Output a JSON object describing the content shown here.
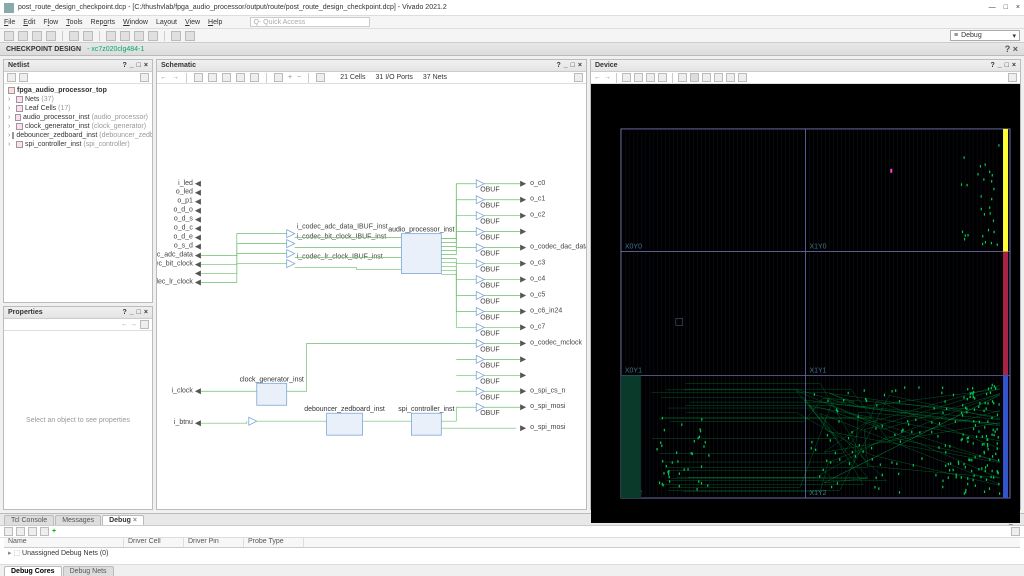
{
  "app": {
    "title": "post_route_design_checkpoint.dcp - [C:/thushvlab/fpga_audio_processor/output/route/post_route_design_checkpoint.dcp] - Vivado 2021.2",
    "menus": [
      "File",
      "Edit",
      "Flow",
      "Tools",
      "Reports",
      "Window",
      "Layout",
      "View",
      "Help"
    ],
    "search_placeholder": "Q- Quick Access",
    "layout_dropdown": "Debug"
  },
  "band": {
    "label": "CHECKPOINT DESIGN",
    "chip": "- xc7z020clg484-1"
  },
  "netlist": {
    "title": "Netlist",
    "root": "fpga_audio_processor_top",
    "items": [
      {
        "label": "Nets",
        "count": "(37)"
      },
      {
        "label": "Leaf Cells",
        "count": "(17)"
      },
      {
        "label": "audio_processor_inst",
        "type": "(audio_processor)"
      },
      {
        "label": "clock_generator_inst",
        "type": "(clock_generator)"
      },
      {
        "label": "debouncer_zedboard_inst",
        "type": "(debouncer_zedboard)"
      },
      {
        "label": "spi_controller_inst",
        "type": "(spi_controller)"
      }
    ]
  },
  "properties": {
    "title": "Properties",
    "empty": "Select an object to see properties"
  },
  "schematic": {
    "title": "Schematic",
    "stats": {
      "cells": "21 Cells",
      "ports": "31 I/O Ports",
      "nets": "37 Nets"
    },
    "left_ports": [
      "i_led",
      "o_led",
      "o_p1",
      "o_d_o",
      "o_d_s",
      "o_d_c",
      "o_d_e",
      "o_s_d",
      "i_codec_adc_data",
      "i_codec_bit_clock",
      "",
      "i_codec_lr_clock"
    ],
    "right_ports": [
      "o_c0",
      "o_c1",
      "o_c2",
      "",
      "o_codec_dac_data",
      "o_c3",
      "o_c4",
      "o_c5",
      "o_c6_in24",
      "o_c7",
      "o_codec_mclock",
      "",
      "",
      "o_spi_cs_n",
      "o_spi_mosi"
    ],
    "blocks": {
      "audio": "audio_processor_inst",
      "clock": "clock_generator_inst",
      "deb": "debouncer_zedboard_inst",
      "spi": "spi_controller_inst"
    },
    "small_labels": [
      "i_codec_adc_data_IBUF_inst",
      "i_codec_bit_clock_IBUF_inst",
      "",
      "i_codec_lr_clock_IBUF_inst"
    ],
    "obuf": "OBUF",
    "ibuf": "IBUF",
    "colors": {
      "net": "#6dbf6d",
      "block": "#7aa6d8",
      "port": "#555"
    }
  },
  "device": {
    "title": "Device",
    "tiles": [
      "X0Y2",
      "X1Y2",
      "X0Y1",
      "X1Y1",
      "X0Y0",
      "X1Y0"
    ],
    "colors": {
      "bg": "#000000",
      "grid": "#2a2a5a",
      "border": "#7878b8",
      "hl_yellow": "#ffff33",
      "hl_red": "#aa2244",
      "hl_blue": "#3355cc",
      "hl_green": "#00cc55",
      "hl_mag": "#ff44cc",
      "text": "#447788"
    }
  },
  "bottom": {
    "tabs": [
      "Tcl Console",
      "Messages",
      "Debug"
    ],
    "active": 2,
    "columns": [
      "Name",
      "Driver Cell",
      "Driver Pin",
      "Probe Type"
    ],
    "row": "Unassigned Debug Nets (0)",
    "subtabs": [
      "Debug Cores",
      "Debug Nets"
    ]
  }
}
